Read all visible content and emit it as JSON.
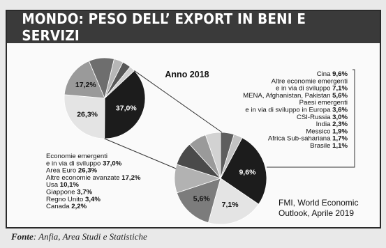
{
  "title": "MONDO: PESO DELL’ EXPORT IN BENI E SERVIZI",
  "source_label": "Fonte",
  "source_text": ": Anfia, Area Studi e Statistiche",
  "chart_data": [
    {
      "type": "pie",
      "title": "Anno 2018",
      "slices": [
        {
          "label_lines": [
            "Economie emergenti",
            "e in via di sviluppo"
          ],
          "value": 37.0,
          "display": "37,0%",
          "color": "#1c1c1c",
          "inner_label": "37,0%",
          "inner_color": "#ffffff"
        },
        {
          "label_lines": [
            "Area Euro"
          ],
          "value": 26.3,
          "display": "26,3%",
          "color": "#e4e4e4",
          "inner_label": "26,3%",
          "inner_color": "#111111"
        },
        {
          "label_lines": [
            "Altre economie avanzate"
          ],
          "value": 17.2,
          "display": "17,2%",
          "color": "#9a9a9a",
          "inner_label": "17,2%",
          "inner_color": "#111111"
        },
        {
          "label_lines": [
            "Usa"
          ],
          "value": 10.1,
          "display": "10,1%",
          "color": "#6e6e6e",
          "inner_label": "",
          "inner_color": "#ffffff"
        },
        {
          "label_lines": [
            "Giappone"
          ],
          "value": 3.7,
          "display": "3,7%",
          "color": "#b7b7b7",
          "inner_label": "",
          "inner_color": "#111111"
        },
        {
          "label_lines": [
            "Regno Unito"
          ],
          "value": 3.4,
          "display": "3,4%",
          "color": "#585858",
          "inner_label": "",
          "inner_color": "#ffffff"
        },
        {
          "label_lines": [
            "Canada"
          ],
          "value": 2.2,
          "display": "2,2%",
          "color": "#d0d0d0",
          "inner_label": "",
          "inner_color": "#111111"
        }
      ]
    },
    {
      "type": "pie",
      "title": "",
      "slices": [
        {
          "label_lines": [
            "Cina"
          ],
          "value": 9.6,
          "display": "9,6%",
          "color": "#1c1c1c",
          "inner_label": "9,6%",
          "inner_color": "#ffffff"
        },
        {
          "label_lines": [
            "Altre economie emergenti",
            "e in via di sviluppo"
          ],
          "value": 7.1,
          "display": "7,1%",
          "color": "#e4e4e4",
          "inner_label": "7,1%",
          "inner_color": "#111111"
        },
        {
          "label_lines": [
            "MENA, Afghanistan, Pakistan"
          ],
          "value": 5.6,
          "display": "5,6%",
          "color": "#7c7c7c",
          "inner_label": "5,6%",
          "inner_color": "#111111"
        },
        {
          "label_lines": [
            "Paesi emergenti",
            "e in via di sviluppo in Europa"
          ],
          "value": 3.6,
          "display": "3,6%",
          "color": "#b2b2b2",
          "inner_label": "",
          "inner_color": "#111111"
        },
        {
          "label_lines": [
            "CSI-Russia"
          ],
          "value": 3.0,
          "display": "3,0%",
          "color": "#4a4a4a",
          "inner_label": "",
          "inner_color": "#ffffff"
        },
        {
          "label_lines": [
            "India"
          ],
          "value": 2.3,
          "display": "2,3%",
          "color": "#9a9a9a",
          "inner_label": "",
          "inner_color": "#111111"
        },
        {
          "label_lines": [
            "Messico"
          ],
          "value": 1.9,
          "display": "1,9%",
          "color": "#d2d2d2",
          "inner_label": "",
          "inner_color": "#111111"
        },
        {
          "label_lines": [
            "Africa Sub-sahariana"
          ],
          "value": 1.7,
          "display": "1,7%",
          "color": "#5e5e5e",
          "inner_label": "",
          "inner_color": "#ffffff"
        },
        {
          "label_lines": [
            "Brasile"
          ],
          "value": 1.1,
          "display": "1,1%",
          "color": "#c2c2c2",
          "inner_label": "",
          "inner_color": "#111111"
        }
      ]
    }
  ],
  "note_lines": [
    "FMI, World Economic",
    "Outlook, Aprile 2019"
  ]
}
